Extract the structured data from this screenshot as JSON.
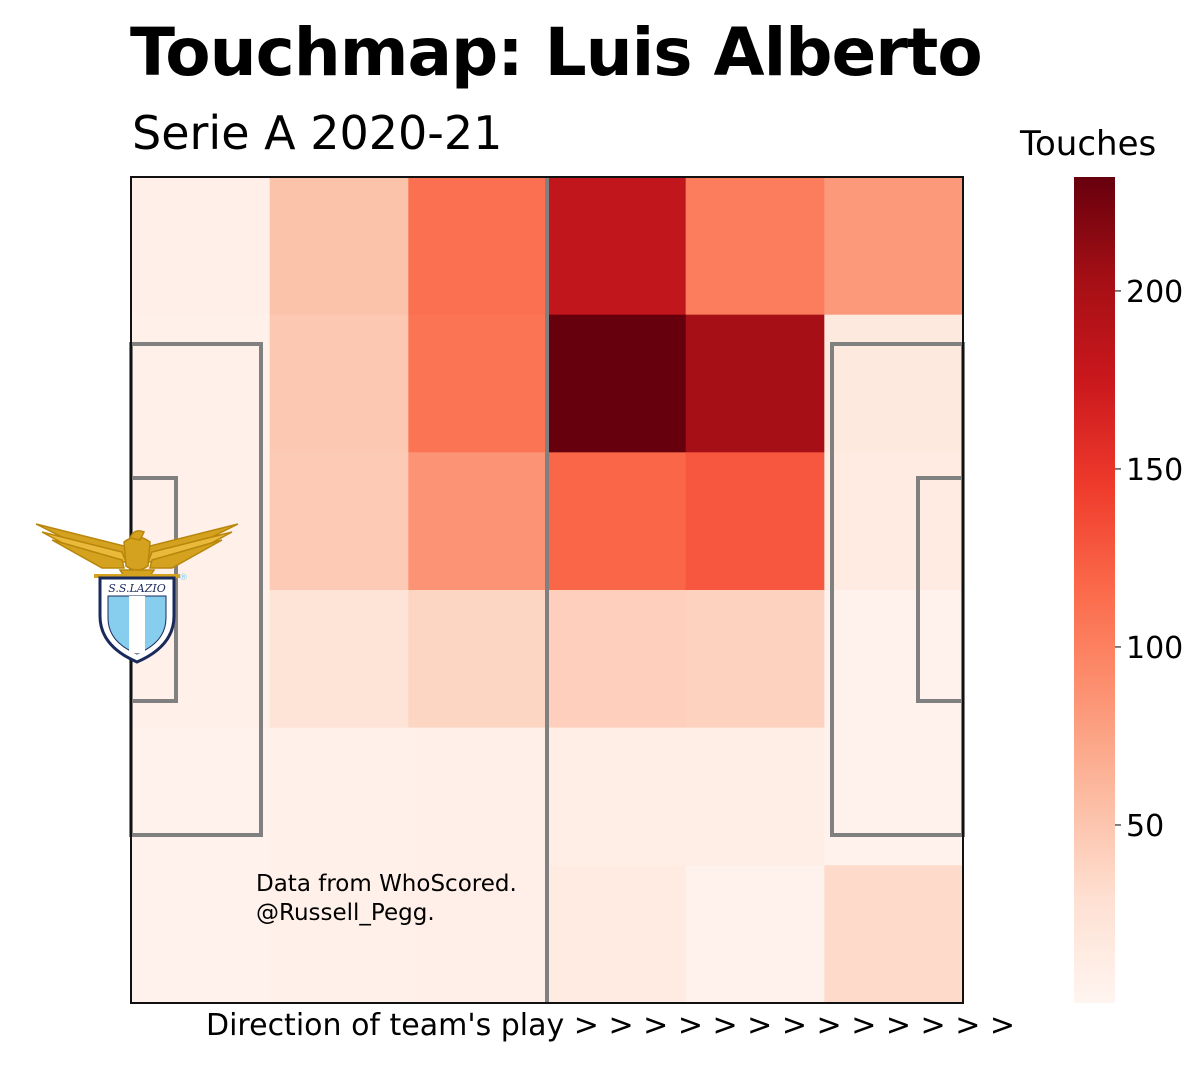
{
  "chart_data": {
    "type": "heatmap",
    "title": "Touchmap: Luis Alberto",
    "subtitle": "Serie A 2020-21",
    "xlabel": "Direction of team's play > > > > > > > > > > > > >",
    "colorbar": {
      "label": "Touches",
      "ticks": [
        50,
        100,
        150,
        200
      ],
      "range": [
        0,
        232
      ],
      "colormap": "Reds"
    },
    "grid": {
      "columns": 6,
      "rows": 6
    },
    "values": [
      [
        8,
        52,
        112,
        182,
        102,
        82
      ],
      [
        6,
        48,
        108,
        232,
        202,
        16
      ],
      [
        6,
        46,
        86,
        118,
        128,
        14
      ],
      [
        6,
        24,
        38,
        42,
        40,
        5
      ],
      [
        4,
        6,
        8,
        10,
        10,
        5
      ],
      [
        4,
        6,
        8,
        14,
        5,
        34
      ]
    ],
    "annotation": [
      "Data from WhoScored.",
      "@Russell_Pegg."
    ]
  },
  "logo": {
    "name": "lazio-crest",
    "text": "S.S.LAZIO",
    "colors": {
      "gold": "#d4a21f",
      "sky": "#87cdee",
      "navy": "#1b2a5c"
    }
  },
  "colors": {
    "pitch_lines": "#808080",
    "frame": "#111111"
  }
}
